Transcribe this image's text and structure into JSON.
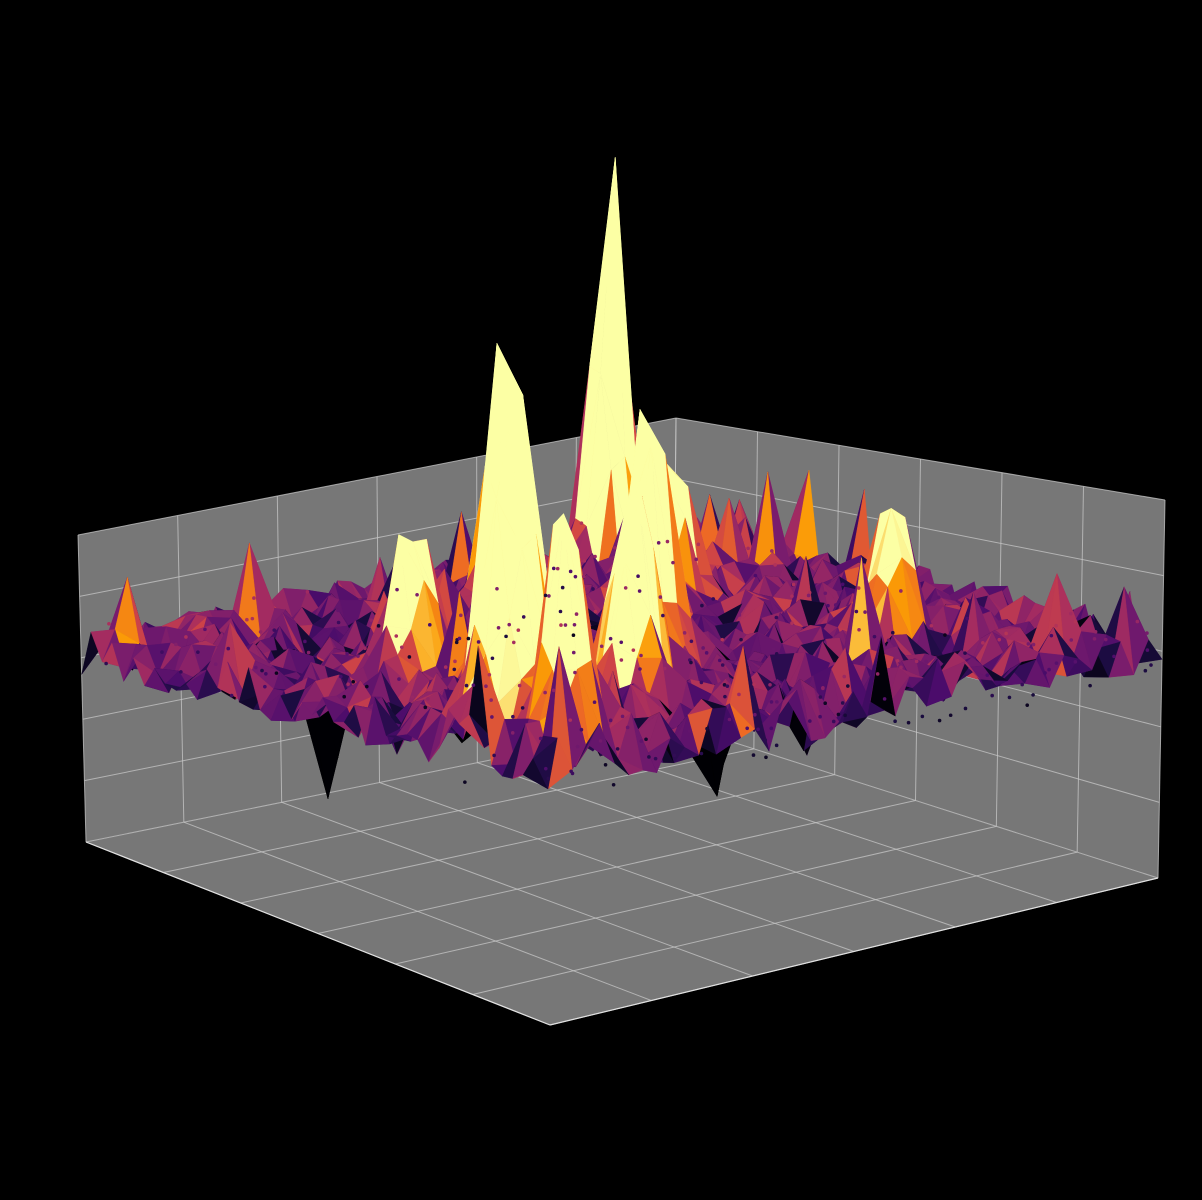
{
  "chart_data": {
    "type": "surface3d",
    "title": "",
    "colormap": "inferno",
    "background": "#000000",
    "pane_color": "#777777",
    "grid": true,
    "x_range": [
      0,
      1
    ],
    "y_range": [
      0,
      1
    ],
    "z_range": [
      0,
      1
    ],
    "surface_level": 0.62,
    "resolution": [
      44,
      44
    ],
    "spikes": [
      {
        "x": 0.84,
        "y": 0.06,
        "z": 1.35,
        "w": 0.02
      },
      {
        "x": 0.1,
        "y": 0.8,
        "z": 0.95,
        "w": 0.035
      },
      {
        "x": 0.1,
        "y": 0.92,
        "z": 0.78,
        "w": 0.02
      },
      {
        "x": 0.46,
        "y": 0.62,
        "z": 0.8,
        "w": 0.025
      },
      {
        "x": 0.3,
        "y": 0.8,
        "z": 0.6,
        "w": 0.03
      },
      {
        "x": 0.55,
        "y": 0.18,
        "z": 0.55,
        "w": 0.02
      },
      {
        "x": 0.7,
        "y": 0.35,
        "z": 0.5,
        "w": 0.03
      },
      {
        "x": 0.2,
        "y": 0.45,
        "z": 0.45,
        "w": 0.025
      },
      {
        "x": 0.62,
        "y": 0.55,
        "z": -0.45,
        "w": 0.03
      },
      {
        "x": 0.25,
        "y": 0.2,
        "z": -0.4,
        "w": 0.03
      },
      {
        "x": 0.78,
        "y": 0.72,
        "z": 0.45,
        "w": 0.025
      },
      {
        "x": 0.4,
        "y": 0.3,
        "z": -0.35,
        "w": 0.03
      }
    ]
  }
}
